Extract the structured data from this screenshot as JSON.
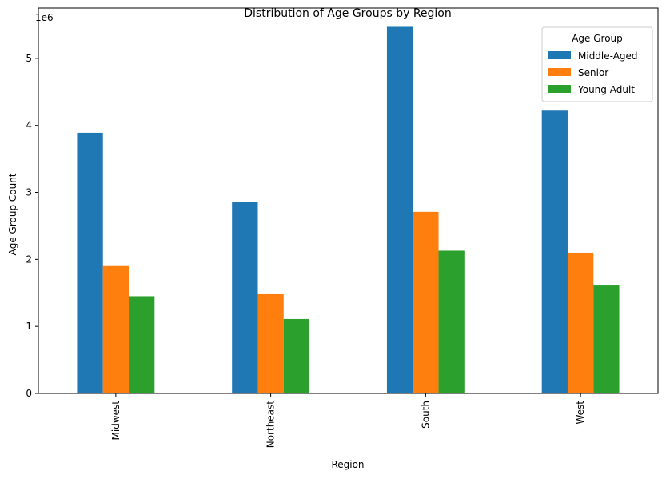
{
  "chart_data": {
    "type": "bar",
    "title": "Distribution of Age Groups by Region",
    "xlabel": "Region",
    "ylabel": "Age Group Count",
    "scale_label": "1e6",
    "categories": [
      "Midwest",
      "Northeast",
      "South",
      "West"
    ],
    "series": [
      {
        "name": "Middle-Aged",
        "color": "#1f77b4",
        "values": [
          3890000,
          2860000,
          5470000,
          4220000
        ]
      },
      {
        "name": "Senior",
        "color": "#ff7f0e",
        "values": [
          1900000,
          1480000,
          2710000,
          2100000
        ]
      },
      {
        "name": "Young Adult",
        "color": "#2ca02c",
        "values": [
          1450000,
          1110000,
          2130000,
          1610000
        ]
      }
    ],
    "ylim": [
      0,
      5750000
    ],
    "yticks": [
      0,
      1000000,
      2000000,
      3000000,
      4000000,
      5000000
    ],
    "ytick_labels": [
      "0",
      "1",
      "2",
      "3",
      "4",
      "5"
    ],
    "legend": {
      "title": "Age Group",
      "placement": "top-right"
    },
    "grid": false
  }
}
